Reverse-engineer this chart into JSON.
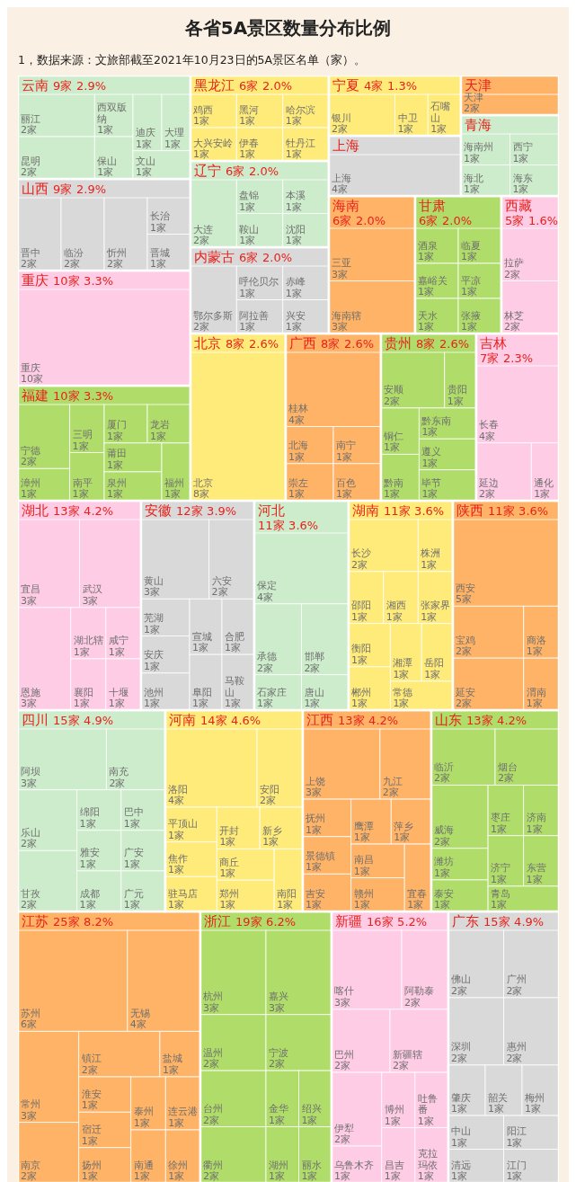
{
  "chart_data": [
    {
      "type": "other",
      "title": "各省5A景区数量分布比例",
      "annotations": [
        "1，数据来源：文旅部截至2021年10月23日的5A景区名单（家）。"
      ]
    },
    {
      "type": "other",
      "title": "江苏",
      "color": "#ffb366",
      "annotations": [
        "25家",
        "8.2%"
      ],
      "categories": [
        "苏州",
        "无锡",
        "常州",
        "南京",
        "镇江",
        "盐城",
        "淮安",
        "宿迁",
        "扬州",
        "泰州",
        "连云港",
        "南通",
        "徐州"
      ],
      "values": [
        6,
        4,
        3,
        2,
        2,
        1,
        1,
        1,
        1,
        1,
        1,
        1,
        1
      ],
      "value_labels": [
        "6家",
        "4家",
        "3家",
        "2家",
        "2家",
        "1家",
        "1家",
        "1家",
        "1家",
        "1家",
        "1家",
        "1家",
        "1家"
      ]
    },
    {
      "type": "other",
      "title": "浙江",
      "color": "#b0dd6a",
      "annotations": [
        "19家",
        "6.2%"
      ],
      "categories": [
        "杭州",
        "嘉兴",
        "温州",
        "宁波",
        "台州",
        "衢州",
        "金华",
        "绍兴",
        "湖州",
        "丽水"
      ],
      "values": [
        3,
        3,
        2,
        2,
        2,
        2,
        1,
        1,
        1,
        1
      ],
      "value_labels": [
        "3家",
        "3家",
        "2家",
        "2家",
        "2家",
        "2家",
        "1家",
        "1家",
        "1家",
        "1家"
      ]
    },
    {
      "type": "other",
      "title": "新疆",
      "color": "#ffcce6",
      "annotations": [
        "16家",
        "5.2%"
      ],
      "categories": [
        "喀什",
        "阿勒泰",
        "巴州",
        "新疆辖",
        "伊犁",
        "乌鲁木齐",
        "博州",
        "吐鲁番",
        "昌吉",
        "克拉玛依"
      ],
      "values": [
        3,
        2,
        2,
        2,
        2,
        1,
        1,
        1,
        1,
        1
      ],
      "value_labels": [
        "3家",
        "2家",
        "2家",
        "2家",
        "2家",
        "1家",
        "1家",
        "1家",
        "1家",
        "1家"
      ]
    },
    {
      "type": "other",
      "title": "广东",
      "color": "#d9d9d9",
      "annotations": [
        "15家",
        "4.9%"
      ],
      "categories": [
        "佛山",
        "广州",
        "深圳",
        "惠州",
        "肇庆",
        "韶关",
        "梅州",
        "中山",
        "清远",
        "阳江",
        "江门"
      ],
      "values": [
        2,
        2,
        2,
        2,
        1,
        1,
        1,
        1,
        1,
        1,
        1
      ],
      "value_labels": [
        "2家",
        "2家",
        "2家",
        "2家",
        "1家",
        "1家",
        "1家",
        "1家",
        "1家",
        "1家",
        "1家"
      ]
    },
    {
      "type": "other",
      "title": "四川",
      "color": "#cdeccb",
      "annotations": [
        "15家",
        "4.9%"
      ],
      "categories": [
        "阿坝",
        "南充",
        "乐山",
        "甘孜",
        "绵阳",
        "巴中",
        "雅安",
        "成都",
        "广安",
        "广元"
      ],
      "values": [
        3,
        2,
        2,
        2,
        1,
        1,
        1,
        1,
        1,
        1
      ],
      "value_labels": [
        "3家",
        "2家",
        "2家",
        "2家",
        "1家",
        "1家",
        "1家",
        "1家",
        "1家",
        "1家"
      ]
    },
    {
      "type": "other",
      "title": "河南",
      "color": "#ffeb7a",
      "annotations": [
        "14家",
        "4.6%"
      ],
      "categories": [
        "洛阳",
        "安阳",
        "平顶山",
        "焦作",
        "驻马店",
        "开封",
        "新乡",
        "商丘",
        "郑州",
        "南阳"
      ],
      "values": [
        4,
        2,
        1,
        1,
        1,
        1,
        1,
        1,
        1,
        1
      ],
      "value_labels": [
        "4家",
        "2家",
        "1家",
        "1家",
        "1家",
        "1家",
        "1家",
        "1家",
        "1家",
        "1家"
      ]
    },
    {
      "type": "other",
      "title": "江西",
      "color": "#ffb366",
      "annotations": [
        "13家",
        "4.2%"
      ],
      "categories": [
        "上饶",
        "九江",
        "抚州",
        "景德镇",
        "吉安",
        "鹰潭",
        "萍乡",
        "南昌",
        "赣州",
        "宜春"
      ],
      "values": [
        3,
        2,
        1,
        1,
        1,
        1,
        1,
        1,
        1,
        1
      ],
      "value_labels": [
        "3家",
        "2家",
        "1家",
        "1家",
        "1家",
        "1家",
        "1家",
        "1家",
        "1家",
        "1家"
      ]
    },
    {
      "type": "other",
      "title": "山东",
      "color": "#b0dd6a",
      "annotations": [
        "13家",
        "4.2%"
      ],
      "categories": [
        "临沂",
        "烟台",
        "威海",
        "潍坊",
        "泰安",
        "枣庄",
        "济南",
        "济宁",
        "东营",
        "青岛"
      ],
      "values": [
        2,
        2,
        2,
        1,
        1,
        1,
        1,
        1,
        1,
        1
      ],
      "value_labels": [
        "2家",
        "2家",
        "2家",
        "1家",
        "1家",
        "1家",
        "1家",
        "1家",
        "1家",
        "1家"
      ]
    },
    {
      "type": "other",
      "title": "湖北",
      "color": "#ffcce6",
      "annotations": [
        "13家",
        "4.2%"
      ],
      "categories": [
        "宜昌",
        "武汉",
        "恩施",
        "湖北辖",
        "咸宁",
        "襄阳",
        "十堰"
      ],
      "values": [
        3,
        3,
        3,
        1,
        1,
        1,
        1
      ],
      "value_labels": [
        "3家",
        "3家",
        "3家",
        "1家",
        "1家",
        "1家",
        "1家"
      ]
    },
    {
      "type": "other",
      "title": "安徽",
      "color": "#d9d9d9",
      "annotations": [
        "12家",
        "3.9%"
      ],
      "categories": [
        "黄山",
        "六安",
        "芜湖",
        "安庆",
        "池州",
        "宣城",
        "合肥",
        "阜阳",
        "马鞍山"
      ],
      "values": [
        3,
        2,
        1,
        1,
        1,
        1,
        1,
        1,
        1
      ],
      "value_labels": [
        "3家",
        "2家",
        "1家",
        "1家",
        "1家",
        "1家",
        "1家",
        "1家",
        "1家"
      ]
    },
    {
      "type": "other",
      "title": "河北",
      "color": "#cdeccb",
      "annotations": [
        "11家",
        "3.6%"
      ],
      "categories": [
        "保定",
        "承德",
        "邯郸",
        "石家庄",
        "唐山"
      ],
      "values": [
        4,
        2,
        2,
        1,
        1
      ],
      "value_labels": [
        "4家",
        "2家",
        "2家",
        "1家",
        "1家"
      ]
    },
    {
      "type": "other",
      "title": "湖南",
      "color": "#ffeb7a",
      "annotations": [
        "11家",
        "3.6%"
      ],
      "categories": [
        "长沙",
        "株洲",
        "邵阳",
        "湘西",
        "张家界",
        "衡阳",
        "郴州",
        "湘潭",
        "岳阳",
        "常德"
      ],
      "values": [
        2,
        1,
        1,
        1,
        1,
        1,
        1,
        1,
        1,
        1
      ],
      "value_labels": [
        "2家",
        "1家",
        "1家",
        "1家",
        "1家",
        "1家",
        "1家",
        "1家",
        "1家",
        "1家"
      ]
    },
    {
      "type": "other",
      "title": "陕西",
      "color": "#ffb366",
      "annotations": [
        "11家",
        "3.6%"
      ],
      "categories": [
        "西安",
        "宝鸡",
        "延安",
        "商洛",
        "渭南"
      ],
      "values": [
        5,
        2,
        2,
        1,
        1
      ],
      "value_labels": [
        "5家",
        "2家",
        "2家",
        "1家",
        "1家"
      ]
    },
    {
      "type": "other",
      "title": "福建",
      "color": "#b0dd6a",
      "annotations": [
        "10家",
        "3.3%"
      ],
      "categories": [
        "宁德",
        "漳州",
        "三明",
        "南平",
        "厦门",
        "龙岩",
        "莆田",
        "泉州",
        "福州"
      ],
      "values": [
        2,
        1,
        1,
        1,
        1,
        1,
        1,
        1,
        1
      ],
      "value_labels": [
        "2家",
        "1家",
        "1家",
        "1家",
        "1家",
        "1家",
        "1家",
        "1家",
        "1家"
      ]
    },
    {
      "type": "other",
      "title": "重庆",
      "color": "#ffcce6",
      "annotations": [
        "10家",
        "3.3%"
      ],
      "categories": [
        "重庆"
      ],
      "values": [
        10
      ],
      "value_labels": [
        "10家"
      ]
    },
    {
      "type": "other",
      "title": "山西",
      "color": "#d9d9d9",
      "annotations": [
        "9家",
        "2.9%"
      ],
      "categories": [
        "晋中",
        "临汾",
        "忻州",
        "长治",
        "晋城"
      ],
      "values": [
        2,
        2,
        2,
        1,
        1
      ],
      "value_labels": [
        "2家",
        "2家",
        "2家",
        "1家",
        "1家"
      ]
    },
    {
      "type": "other",
      "title": "云南",
      "color": "#cdeccb",
      "annotations": [
        "9家",
        "2.9%"
      ],
      "categories": [
        "丽江",
        "昆明",
        "西双版纳",
        "保山",
        "迪庆",
        "大理",
        "文山"
      ],
      "values": [
        2,
        2,
        1,
        1,
        1,
        1,
        1
      ],
      "value_labels": [
        "2家",
        "2家",
        "1家",
        "1家",
        "1家",
        "1家",
        "1家"
      ]
    },
    {
      "type": "other",
      "title": "北京",
      "color": "#ffeb7a",
      "annotations": [
        "8家",
        "2.6%"
      ],
      "categories": [
        "北京"
      ],
      "values": [
        8
      ],
      "value_labels": [
        "8家"
      ]
    },
    {
      "type": "other",
      "title": "广西",
      "color": "#ffb366",
      "annotations": [
        "8家",
        "2.6%"
      ],
      "categories": [
        "桂林",
        "北海",
        "崇左",
        "南宁",
        "百色"
      ],
      "values": [
        4,
        1,
        1,
        1,
        1
      ],
      "value_labels": [
        "4家",
        "1家",
        "1家",
        "1家",
        "1家"
      ]
    },
    {
      "type": "other",
      "title": "贵州",
      "color": "#b0dd6a",
      "annotations": [
        "8家",
        "2.6%"
      ],
      "categories": [
        "安顺",
        "贵阳",
        "铜仁",
        "黔南",
        "黔东南",
        "遵义",
        "毕节"
      ],
      "values": [
        2,
        1,
        1,
        1,
        1,
        1,
        1
      ],
      "value_labels": [
        "2家",
        "1家",
        "1家",
        "1家",
        "1家",
        "1家",
        "1家"
      ]
    },
    {
      "type": "other",
      "title": "吉林",
      "color": "#ffcce6",
      "annotations": [
        "7家",
        "2.3%"
      ],
      "categories": [
        "长春",
        "延边",
        "通化"
      ],
      "values": [
        4,
        2,
        1
      ],
      "value_labels": [
        "4家",
        "2家",
        "1家"
      ]
    },
    {
      "type": "other",
      "title": "内蒙古",
      "color": "#d9d9d9",
      "annotations": [
        "6家",
        "2.0%"
      ],
      "categories": [
        "鄂尔多斯",
        "呼伦贝尔",
        "阿拉善",
        "赤峰",
        "兴安"
      ],
      "values": [
        2,
        1,
        1,
        1,
        1
      ],
      "value_labels": [
        "2家",
        "1家",
        "1家",
        "1家",
        "1家"
      ]
    },
    {
      "type": "other",
      "title": "辽宁",
      "color": "#cdeccb",
      "annotations": [
        "6家",
        "2.0%"
      ],
      "categories": [
        "大连",
        "盘锦",
        "鞍山",
        "本溪",
        "沈阳"
      ],
      "values": [
        2,
        1,
        1,
        1,
        1
      ],
      "value_labels": [
        "2家",
        "1家",
        "1家",
        "1家",
        "1家"
      ]
    },
    {
      "type": "other",
      "title": "黑龙江",
      "color": "#ffeb7a",
      "annotations": [
        "6家",
        "2.0%"
      ],
      "categories": [
        "鸡西",
        "大兴安岭",
        "黑河",
        "伊春",
        "哈尔滨",
        "牡丹江"
      ],
      "values": [
        1,
        1,
        1,
        1,
        1,
        1
      ],
      "value_labels": [
        "1家",
        "1家",
        "1家",
        "1家",
        "1家",
        "1家"
      ]
    },
    {
      "type": "other",
      "title": "海南",
      "color": "#ffb366",
      "annotations": [
        "6家",
        "2.0%"
      ],
      "categories": [
        "三亚",
        "海南辖"
      ],
      "values": [
        3,
        3
      ],
      "value_labels": [
        "3家",
        "3家"
      ]
    },
    {
      "type": "other",
      "title": "甘肃",
      "color": "#b0dd6a",
      "annotations": [
        "6家",
        "2.0%"
      ],
      "categories": [
        "酒泉",
        "临夏",
        "嘉峪关",
        "天水",
        "平凉",
        "张掖"
      ],
      "values": [
        1,
        1,
        1,
        1,
        1,
        1
      ],
      "value_labels": [
        "1家",
        "1家",
        "1家",
        "1家",
        "1家",
        "1家"
      ]
    },
    {
      "type": "other",
      "title": "西藏",
      "color": "#ffcce6",
      "annotations": [
        "5家",
        "1.6%"
      ],
      "categories": [
        "拉萨",
        "林芝"
      ],
      "values": [
        2,
        2
      ],
      "value_labels": [
        "2家",
        "2家"
      ]
    },
    {
      "type": "other",
      "title": "上海",
      "color": "#d9d9d9",
      "categories": [
        "上海"
      ],
      "values": [
        4
      ],
      "value_labels": [
        "4家"
      ]
    },
    {
      "type": "other",
      "title": "宁夏",
      "color": "#ffeb7a",
      "annotations": [
        "4家",
        "1.3%"
      ],
      "categories": [
        "银川",
        "中卫",
        "石嘴山"
      ],
      "values": [
        2,
        1,
        1
      ],
      "value_labels": [
        "2家",
        "1家",
        "1家"
      ]
    },
    {
      "type": "other",
      "title": "青海",
      "color": "#cdeccb",
      "categories": [
        "海南州",
        "海北",
        "西宁",
        "海东"
      ],
      "values": [
        1,
        1,
        1,
        1
      ],
      "value_labels": [
        "1家",
        "1家",
        "1家",
        "1家"
      ]
    },
    {
      "type": "other",
      "title": "天津",
      "color": "#ffb366",
      "categories": [
        "天津"
      ],
      "values": [
        2
      ],
      "value_labels": [
        "2家"
      ]
    }
  ]
}
